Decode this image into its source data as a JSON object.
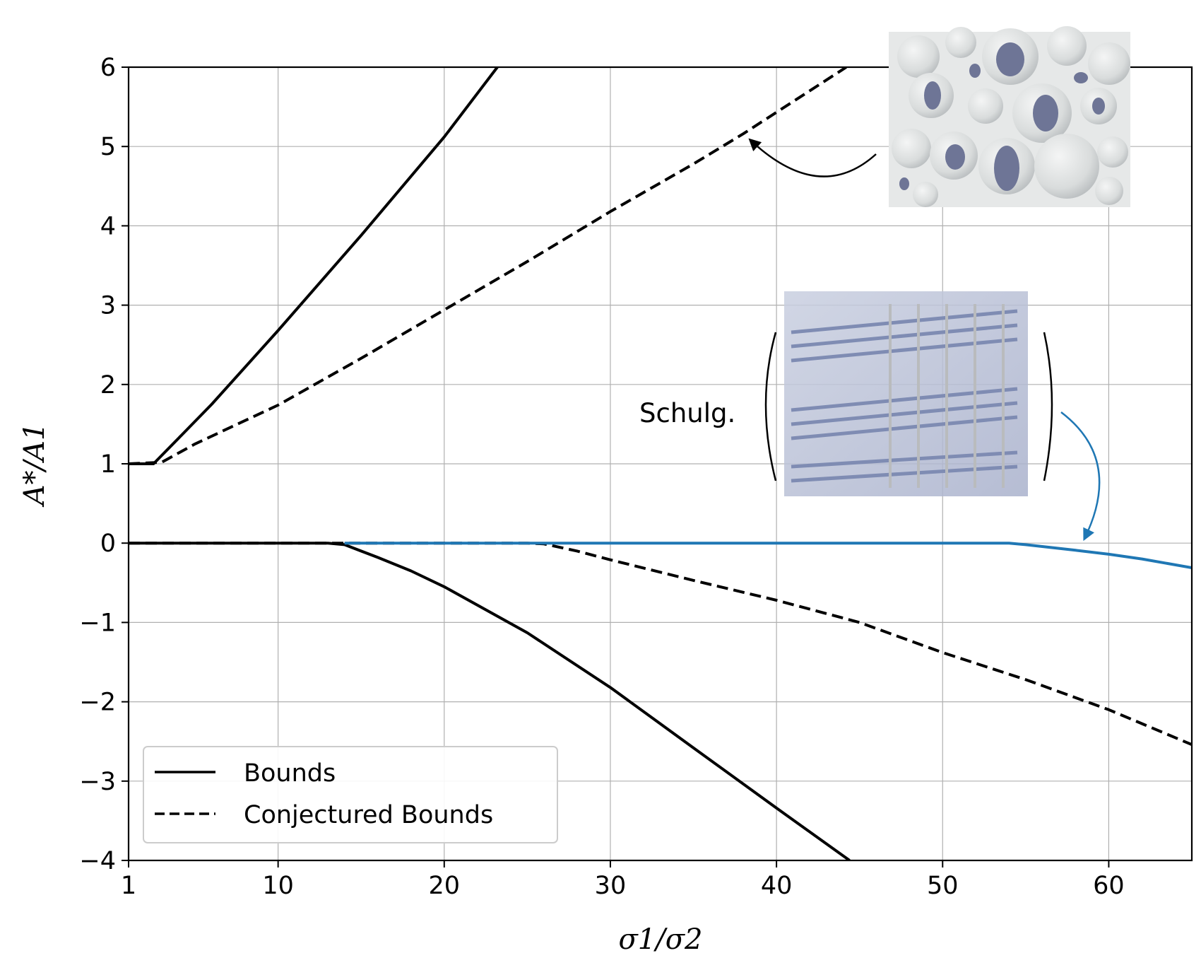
{
  "chart_data": {
    "type": "line",
    "xlabel": "σ1/σ2",
    "ylabel": "A*/A1",
    "xlim": [
      1,
      65
    ],
    "ylim": [
      -4,
      6
    ],
    "xticks": [
      1,
      10,
      20,
      30,
      40,
      50,
      60
    ],
    "yticks": [
      -4,
      -3,
      -2,
      -1,
      0,
      1,
      2,
      3,
      4,
      5,
      6
    ],
    "ytick_labels": [
      "−4",
      "−3",
      "−2",
      "−1",
      "0",
      "1",
      "2",
      "3",
      "4",
      "5",
      "6"
    ],
    "grid": true,
    "legend_position": "bottom-left",
    "legend": [
      {
        "label": "Bounds",
        "style": "solid"
      },
      {
        "label": "Conjectured Bounds",
        "style": "dashed"
      }
    ],
    "series": [
      {
        "style": "solid",
        "color": "#000000",
        "points": [
          [
            1,
            1
          ],
          [
            2.5,
            1
          ],
          [
            4,
            1.32
          ],
          [
            6,
            1.75
          ],
          [
            10,
            2.68
          ],
          [
            15,
            3.88
          ],
          [
            20,
            5.12
          ],
          [
            23.2,
            6
          ]
        ]
      },
      {
        "style": "dashed",
        "color": "#000000",
        "points": [
          [
            1,
            1
          ],
          [
            3,
            1.02
          ],
          [
            5,
            1.25
          ],
          [
            10,
            1.74
          ],
          [
            15,
            2.33
          ],
          [
            20,
            2.94
          ],
          [
            25,
            3.55
          ],
          [
            30,
            4.18
          ],
          [
            35,
            4.78
          ],
          [
            38,
            5.16
          ],
          [
            44.2,
            6
          ]
        ]
      },
      {
        "style": "solid",
        "color": "#000000",
        "points": [
          [
            1,
            0
          ],
          [
            13,
            0
          ],
          [
            14,
            -0.02
          ],
          [
            16,
            -0.18
          ],
          [
            18,
            -0.35
          ],
          [
            20,
            -0.55
          ],
          [
            25,
            -1.13
          ],
          [
            30,
            -1.82
          ],
          [
            35,
            -2.58
          ],
          [
            40,
            -3.34
          ],
          [
            44.4,
            -4
          ]
        ]
      },
      {
        "style": "dashed",
        "color": "#000000",
        "points": [
          [
            1,
            0
          ],
          [
            25,
            0
          ],
          [
            26,
            -0.01
          ],
          [
            28,
            -0.1
          ],
          [
            30,
            -0.21
          ],
          [
            35,
            -0.47
          ],
          [
            40,
            -0.72
          ],
          [
            45,
            -1.0
          ],
          [
            50,
            -1.38
          ],
          [
            55,
            -1.72
          ],
          [
            60,
            -2.1
          ],
          [
            65,
            -2.54
          ]
        ]
      },
      {
        "style": "solid",
        "color": "#1f77b4",
        "points": [
          [
            14,
            0
          ],
          [
            54,
            0
          ],
          [
            55,
            -0.02
          ],
          [
            58,
            -0.09
          ],
          [
            60,
            -0.14
          ],
          [
            62,
            -0.2
          ],
          [
            65,
            -0.31
          ]
        ]
      }
    ],
    "annotations": [
      {
        "text": "Schulg.",
        "color": "#000000"
      }
    ],
    "images": [
      "sphere-packing-microstructure",
      "lamellar-laminate-microstructure"
    ]
  }
}
